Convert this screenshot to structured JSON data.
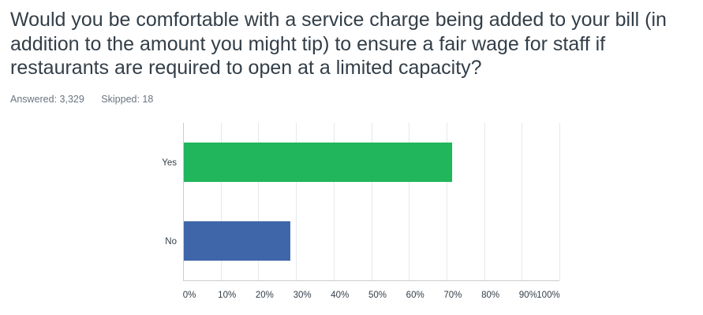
{
  "question": {
    "title": "Would you be comfortable with a service charge being added to your bill (in addition to the amount you might tip) to ensure a fair wage for staff if restaurants are required to open at a limited capacity?"
  },
  "stats": {
    "answered_label": "Answered: 3,329",
    "skipped_label": "Skipped: 18"
  },
  "chart_data": {
    "type": "bar",
    "orientation": "horizontal",
    "title": "",
    "xlabel": "",
    "ylabel": "",
    "categories": [
      "Yes",
      "No"
    ],
    "values": [
      71.5,
      28.5
    ],
    "value_unit": "percent",
    "colors": [
      "#21b55c",
      "#3e66a8"
    ],
    "xlim": [
      0,
      100
    ],
    "x_ticks": [
      "0%",
      "10%",
      "20%",
      "30%",
      "40%",
      "50%",
      "60%",
      "70%",
      "80%",
      "90%",
      "100%"
    ],
    "grid": true,
    "legend": "none"
  }
}
